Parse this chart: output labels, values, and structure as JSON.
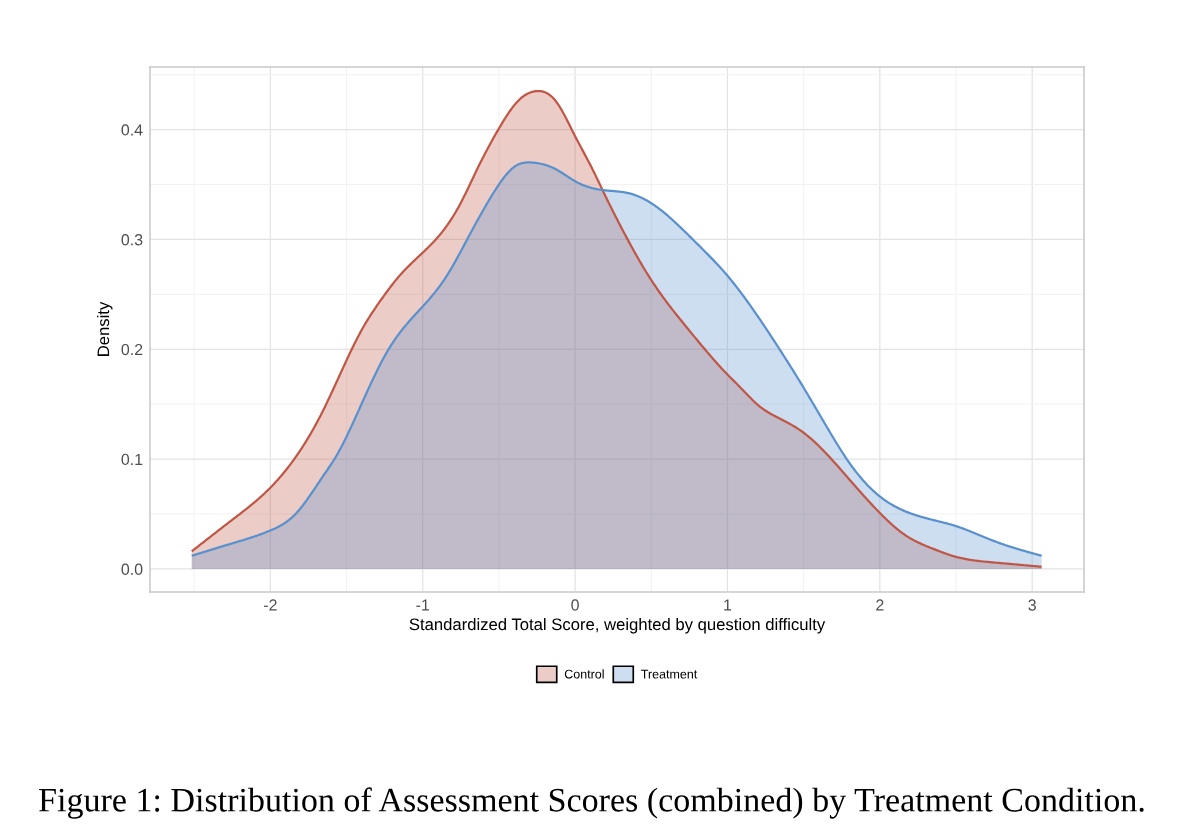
{
  "chart_data": {
    "type": "area",
    "xlabel": "Standardized Total Score, weighted by question difficulty",
    "ylabel": "Density",
    "annotations": [
      "Figure 1: Distribution of Assessment Scores (combined) by Treatment Condition."
    ],
    "xlim": [
      -2.79,
      3.34
    ],
    "ylim": [
      -0.021,
      0.457
    ],
    "xticks": [
      {
        "value": -2.5,
        "label": null
      },
      -2,
      {
        "value": -1.5,
        "label": null
      },
      -1,
      {
        "value": -0.5,
        "label": null
      },
      0,
      {
        "value": 0.5,
        "label": null
      },
      1,
      {
        "value": 1.5,
        "label": null
      },
      2,
      {
        "value": 2.5,
        "label": null
      },
      3
    ],
    "yticks": [
      {
        "value": 0,
        "label": "0.0"
      },
      {
        "value": 0.05,
        "label": null
      },
      0.1,
      {
        "value": 0.15,
        "label": null
      },
      0.2,
      {
        "value": 0.25,
        "label": null
      },
      0.3,
      {
        "value": 0.35,
        "label": null
      },
      0.4,
      {
        "value": 0.45,
        "label": null
      }
    ],
    "grid": true,
    "legend": "bottom",
    "series": [
      {
        "name": "Control",
        "color": "#c05746",
        "x": [
          -2.516,
          -2.257,
          -2.0,
          -1.838,
          -1.662,
          -1.5,
          -1.399,
          -1.289,
          -1.158,
          -1.0,
          -0.895,
          -0.763,
          -0.632,
          -0.5,
          -0.368,
          -0.259,
          -0.127,
          0.0,
          0.114,
          0.18,
          0.333,
          0.5,
          0.75,
          1.0,
          1.079,
          1.211,
          1.342,
          1.5,
          1.649,
          1.803,
          2.0,
          2.175,
          2.338,
          2.5,
          2.738,
          3.062
        ],
        "values": [
          0.016,
          0.044,
          0.074,
          0.101,
          0.142,
          0.19,
          0.218,
          0.242,
          0.266,
          0.288,
          0.303,
          0.33,
          0.367,
          0.401,
          0.427,
          0.435,
          0.426,
          0.394,
          0.364,
          0.345,
          0.303,
          0.263,
          0.217,
          0.177,
          0.166,
          0.148,
          0.137,
          0.124,
          0.105,
          0.081,
          0.051,
          0.03,
          0.019,
          0.011,
          0.006,
          0.002
        ]
      },
      {
        "name": "Treatment",
        "color": "#5a91cd",
        "x": [
          -2.516,
          -2.257,
          -2.0,
          -1.835,
          -1.647,
          -1.575,
          -1.399,
          -1.224,
          -1.0,
          -0.851,
          -0.697,
          -0.555,
          -0.5,
          -0.39,
          -0.281,
          -0.127,
          0.0,
          0.18,
          0.355,
          0.5,
          0.684,
          0.816,
          1.0,
          1.123,
          1.342,
          1.5,
          1.649,
          1.803,
          2.0,
          2.175,
          2.395,
          2.5,
          2.738,
          3.062
        ],
        "values": [
          0.012,
          0.023,
          0.035,
          0.05,
          0.086,
          0.101,
          0.151,
          0.2,
          0.239,
          0.265,
          0.303,
          0.338,
          0.35,
          0.367,
          0.37,
          0.364,
          0.353,
          0.345,
          0.342,
          0.333,
          0.312,
          0.294,
          0.267,
          0.245,
          0.2,
          0.165,
          0.13,
          0.096,
          0.066,
          0.052,
          0.043,
          0.039,
          0.026,
          0.012
        ]
      }
    ]
  }
}
